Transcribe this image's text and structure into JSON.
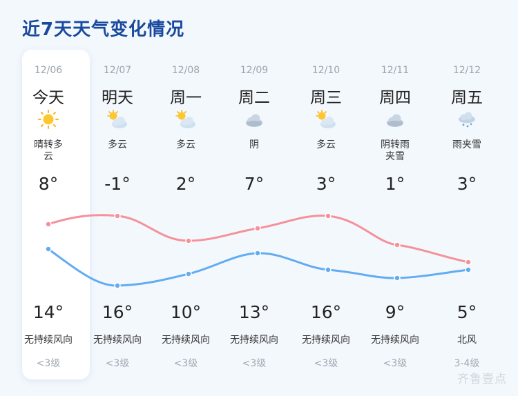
{
  "title": "近7天天气变化情况",
  "watermark": "齐鲁壹点",
  "colors": {
    "high_line": "#f4919a",
    "low_line": "#62acf0",
    "title": "#1a4a9e"
  },
  "days": [
    {
      "date": "12/06",
      "name": "今天",
      "icon": "sun-icon",
      "desc": [
        "晴转多",
        "云"
      ],
      "high": "8°",
      "low": "14°",
      "wind": "无持续风向",
      "level": "<3级"
    },
    {
      "date": "12/07",
      "name": "明天",
      "icon": "partly-cloudy-icon",
      "desc": [
        "多云"
      ],
      "high": "-1°",
      "low": "16°",
      "wind": "无持续风向",
      "level": "<3级"
    },
    {
      "date": "12/08",
      "name": "周一",
      "icon": "partly-cloudy-icon",
      "desc": [
        "多云"
      ],
      "high": "2°",
      "low": "10°",
      "wind": "无持续风向",
      "level": "<3级"
    },
    {
      "date": "12/09",
      "name": "周二",
      "icon": "cloud-icon",
      "desc": [
        "阴"
      ],
      "high": "7°",
      "low": "13°",
      "wind": "无持续风向",
      "level": "<3级"
    },
    {
      "date": "12/10",
      "name": "周三",
      "icon": "partly-cloudy-icon",
      "desc": [
        "多云"
      ],
      "high": "3°",
      "low": "16°",
      "wind": "无持续风向",
      "level": "<3级"
    },
    {
      "date": "12/11",
      "name": "周四",
      "icon": "cloud-icon",
      "desc": [
        "阴转雨",
        "夹雪"
      ],
      "high": "1°",
      "low": "9°",
      "wind": "无持续风向",
      "level": "<3级"
    },
    {
      "date": "12/12",
      "name": "周五",
      "icon": "sleet-icon",
      "desc": [
        "雨夹雪"
      ],
      "high": "3°",
      "low": "5°",
      "wind": "北风",
      "level": "3-4级"
    }
  ]
}
